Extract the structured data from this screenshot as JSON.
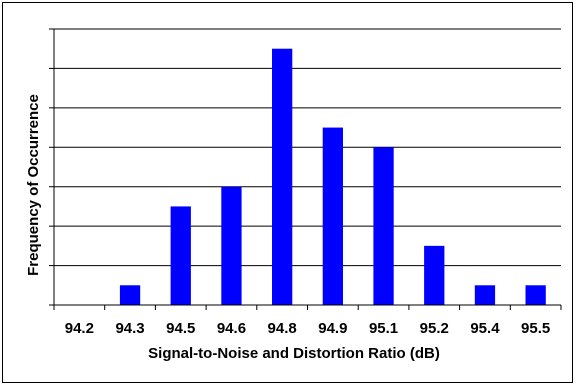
{
  "chart_data": {
    "type": "bar",
    "categories": [
      "94.2",
      "94.3",
      "94.5",
      "94.6",
      "94.8",
      "94.9",
      "95.1",
      "95.2",
      "95.4",
      "95.5"
    ],
    "values": [
      0,
      1,
      5,
      6,
      13,
      9,
      8,
      3,
      1,
      1
    ],
    "title": "",
    "xlabel": "Signal-to-Noise and Distortion Ratio (dB)",
    "ylabel": "Frequency of Occurrence",
    "ylim": [
      0,
      14
    ],
    "grid": true,
    "bar_color": "#0000ff"
  }
}
